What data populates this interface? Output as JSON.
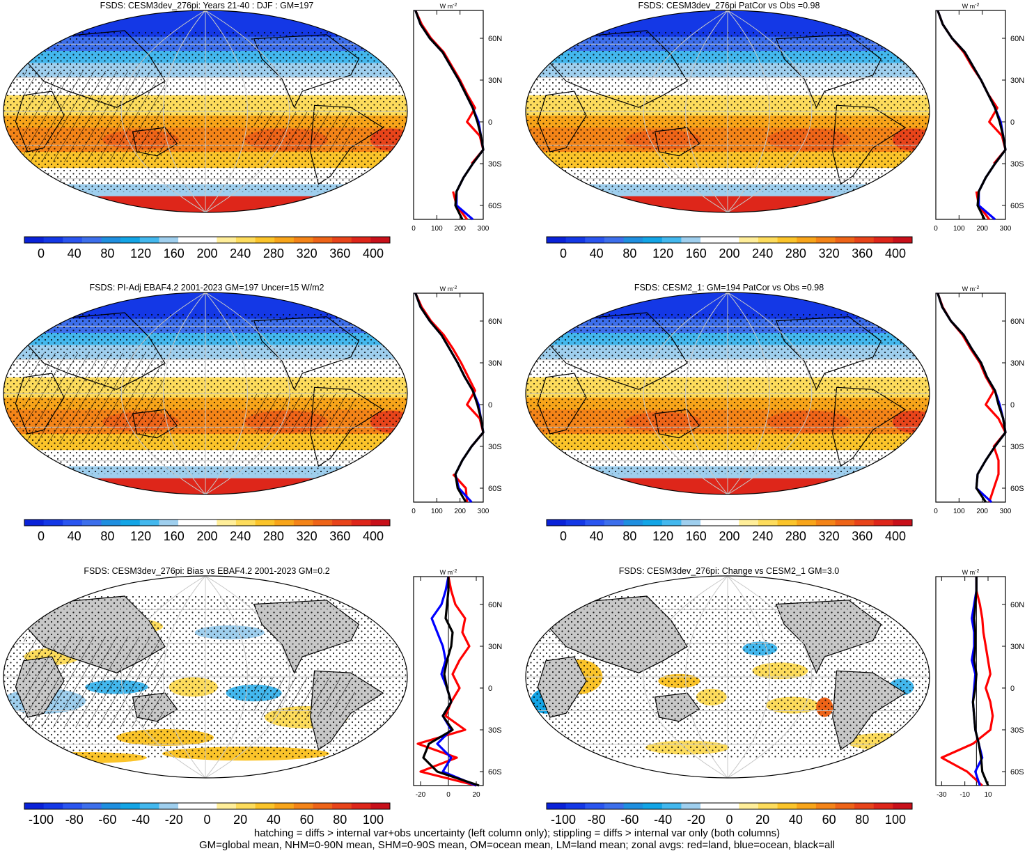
{
  "colors": {
    "base_palette": [
      "#0a22d8",
      "#1438e6",
      "#2a55f0",
      "#3d6fec",
      "#1f8fe0",
      "#13a5e6",
      "#43b8ee",
      "#9fcfee",
      "#ffffff",
      "#ffffff",
      "#ffee9a",
      "#fddc5c",
      "#fbc42a",
      "#f8a51a",
      "#f48418",
      "#ee6418",
      "#e8441a",
      "#de261a",
      "#c8101a"
    ],
    "diff_palette": [
      "#0a22d8",
      "#1438e6",
      "#2a55f0",
      "#3d6fec",
      "#1f8fe0",
      "#13a5e6",
      "#43b8ee",
      "#9fcfee",
      "#ffffff",
      "#ffffff",
      "#ffee9a",
      "#fddc5c",
      "#fbc42a",
      "#f8a51a",
      "#f48418",
      "#ee6418",
      "#e8441a",
      "#de261a",
      "#c8101a"
    ],
    "land_gray": "#c8c8c8",
    "land_line": "#ff0000",
    "ocean_line": "#0000ff",
    "all_line": "#000000"
  },
  "panels": [
    {
      "title": "FSDS: CESM3dev_276pi: Years 21-40 : DJF : GM=197",
      "kind": "mean",
      "hatched": true
    },
    {
      "title": "FSDS: CESM3dev_276pi PatCor vs Obs =0.98",
      "kind": "mean",
      "hatched": false
    },
    {
      "title": "FSDS: PI-Adj EBAF4.2 2001-2023 GM=197 Uncer=15 W/m2",
      "kind": "mean",
      "hatched": true
    },
    {
      "title": "FSDS: CESM2_1: GM=194 PatCor vs Obs =0.98",
      "kind": "mean",
      "hatched": false
    },
    {
      "title": "FSDS: CESM3dev_276pi: Bias vs EBAF4.2 2001-2023 GM=0.2",
      "kind": "bias",
      "hatched": true
    },
    {
      "title": "FSDS: CESM3dev_276pi: Change vs CESM2_1 GM=3.0",
      "kind": "change",
      "hatched": false
    }
  ],
  "colorbar_labels": {
    "mean": [
      "0",
      "40",
      "80",
      "120",
      "160",
      "200",
      "240",
      "280",
      "320",
      "360",
      "400"
    ],
    "diff": [
      "-100",
      "-80",
      "-60",
      "-40",
      "-20",
      "0",
      "20",
      "40",
      "60",
      "80",
      "100"
    ]
  },
  "chart_data": [
    {
      "type": "line",
      "title": "",
      "units": "W m-2",
      "xlim": [
        0,
        300
      ],
      "xticks": [
        "0",
        "100",
        "200",
        "300"
      ],
      "yticks": [
        "60N",
        "30N",
        "0",
        "30S",
        "60S"
      ],
      "y": [
        80,
        70,
        60,
        50,
        40,
        30,
        20,
        10,
        0,
        -10,
        -20,
        -30,
        -40,
        -50,
        -60,
        -70
      ],
      "series": [
        {
          "name": "red=land",
          "values": [
            8,
            35,
            75,
            130,
            165,
            200,
            230,
            265,
            230,
            285,
            300,
            250,
            null,
            170,
            185,
            230
          ]
        },
        {
          "name": "blue=ocean",
          "values": [
            8,
            30,
            70,
            125,
            160,
            195,
            225,
            255,
            280,
            290,
            300,
            255,
            215,
            185,
            185,
            255
          ]
        },
        {
          "name": "black=all",
          "values": [
            8,
            30,
            70,
            125,
            160,
            195,
            225,
            255,
            275,
            290,
            300,
            255,
            215,
            185,
            180,
            210
          ]
        }
      ]
    },
    {
      "type": "line",
      "title": "",
      "units": "W m-2",
      "xlim": [
        0,
        300
      ],
      "xticks": [
        "0",
        "100",
        "200",
        "300"
      ],
      "yticks": [
        "60N",
        "30N",
        "0",
        "30S",
        "60S"
      ],
      "y": [
        80,
        70,
        60,
        50,
        40,
        30,
        20,
        10,
        0,
        -10,
        -20,
        -30,
        -40,
        -50,
        -60,
        -70
      ],
      "series": [
        {
          "name": "red=land",
          "values": [
            8,
            30,
            70,
            120,
            155,
            195,
            225,
            265,
            230,
            285,
            300,
            250,
            null,
            175,
            185,
            230
          ]
        },
        {
          "name": "blue=ocean",
          "values": [
            8,
            30,
            70,
            125,
            160,
            195,
            225,
            255,
            280,
            290,
            300,
            255,
            215,
            185,
            185,
            255
          ]
        },
        {
          "name": "black=all",
          "values": [
            8,
            30,
            70,
            125,
            160,
            195,
            225,
            255,
            275,
            290,
            300,
            255,
            215,
            185,
            180,
            210
          ]
        }
      ]
    },
    {
      "type": "line",
      "title": "",
      "units": "W m-2",
      "xlim": [
        0,
        300
      ],
      "xticks": [
        "0",
        "100",
        "200",
        "300"
      ],
      "yticks": [
        "60N",
        "30N",
        "0",
        "30S",
        "60S"
      ],
      "y": [
        80,
        70,
        60,
        50,
        40,
        30,
        20,
        10,
        0,
        -10,
        -20,
        -30,
        -40,
        -50,
        -60,
        -70
      ],
      "series": [
        {
          "name": "red=land",
          "values": [
            8,
            35,
            75,
            130,
            170,
            205,
            235,
            265,
            230,
            285,
            300,
            250,
            null,
            170,
            225,
            230
          ]
        },
        {
          "name": "blue=ocean",
          "values": [
            8,
            30,
            70,
            120,
            155,
            190,
            220,
            255,
            280,
            290,
            300,
            250,
            210,
            180,
            195,
            250
          ]
        },
        {
          "name": "black=all",
          "values": [
            8,
            30,
            70,
            120,
            155,
            190,
            220,
            255,
            275,
            290,
            300,
            250,
            210,
            180,
            190,
            225
          ]
        }
      ]
    },
    {
      "type": "line",
      "title": "",
      "units": "W m-2",
      "xlim": [
        0,
        300
      ],
      "xticks": [
        "0",
        "100",
        "200",
        "300"
      ],
      "yticks": [
        "60N",
        "30N",
        "0",
        "30S",
        "60S"
      ],
      "y": [
        80,
        70,
        60,
        50,
        40,
        30,
        20,
        10,
        0,
        -10,
        -20,
        -30,
        -40,
        -50,
        -60,
        -70
      ],
      "series": [
        {
          "name": "red=land",
          "values": [
            8,
            30,
            65,
            115,
            150,
            190,
            215,
            250,
            215,
            270,
            300,
            250,
            270,
            270,
            250,
            230
          ]
        },
        {
          "name": "blue=ocean",
          "values": [
            8,
            28,
            65,
            120,
            155,
            195,
            220,
            255,
            275,
            290,
            300,
            255,
            215,
            180,
            175,
            240
          ]
        },
        {
          "name": "black=all",
          "values": [
            8,
            28,
            65,
            120,
            155,
            195,
            220,
            255,
            270,
            290,
            300,
            255,
            215,
            180,
            175,
            215
          ]
        }
      ]
    },
    {
      "type": "line",
      "title": "",
      "units": "W m-2",
      "xlim": [
        -25,
        25
      ],
      "xticks": [
        "-20",
        "0",
        "20"
      ],
      "yticks": [
        "60N",
        "30N",
        "0",
        "30S",
        "60S"
      ],
      "y": [
        80,
        70,
        60,
        50,
        40,
        30,
        20,
        10,
        0,
        -10,
        -20,
        -30,
        -40,
        -50,
        -60,
        -70
      ],
      "series": [
        {
          "name": "red=land",
          "values": [
            0,
            2,
            5,
            12,
            10,
            15,
            8,
            3,
            8,
            2,
            -2,
            12,
            -22,
            6,
            -20,
            20
          ]
        },
        {
          "name": "blue=ocean",
          "values": [
            0,
            -2,
            -5,
            -12,
            -8,
            -4,
            -2,
            -5,
            -1,
            2,
            -4,
            2,
            -8,
            2,
            -4,
            20
          ]
        },
        {
          "name": "black=all",
          "values": [
            0,
            0,
            -1,
            -2,
            3,
            2,
            -1,
            -3,
            -1,
            2,
            -4,
            3,
            -14,
            -18,
            -8,
            22
          ]
        }
      ]
    },
    {
      "type": "line",
      "title": "",
      "units": "W m-2",
      "xlim": [
        -35,
        25
      ],
      "xticks": [
        "-30",
        "-10",
        "10"
      ],
      "yticks": [
        "60N",
        "30N",
        "0",
        "30S",
        "60S"
      ],
      "y": [
        80,
        70,
        60,
        50,
        40,
        30,
        20,
        10,
        0,
        -10,
        -20,
        -30,
        -40,
        -50,
        -60,
        -70
      ],
      "series": [
        {
          "name": "red=land",
          "values": [
            0,
            0,
            3,
            5,
            6,
            8,
            10,
            12,
            8,
            12,
            14,
            12,
            -3,
            -30,
            -8,
            5
          ]
        },
        {
          "name": "blue=ocean",
          "values": [
            0,
            0,
            -2,
            -4,
            -2,
            -2,
            -4,
            -1,
            -2,
            -3,
            -2,
            -1,
            2,
            5,
            -1,
            3
          ]
        },
        {
          "name": "black=all",
          "values": [
            0,
            0,
            -1,
            -2,
            -1,
            -1,
            -2,
            0,
            -1,
            -3,
            -2,
            -1,
            2,
            4,
            5,
            10
          ]
        }
      ]
    }
  ],
  "footnote": {
    "line1": "hatching = diffs > internal var+obs uncertainty (left column only); stippling = diffs > internal var only (both columns)",
    "line2": "GM=global mean, NHM=0-90N mean, SHM=0-90S mean, OM=ocean mean, LM=land mean; zonal avgs: red=land, blue=ocean, black=all"
  }
}
